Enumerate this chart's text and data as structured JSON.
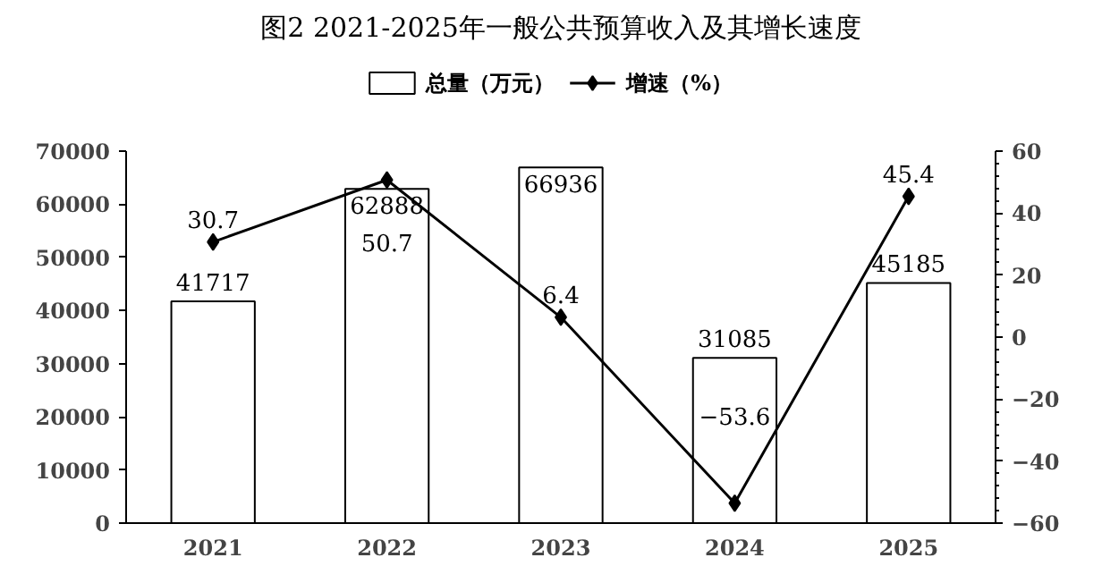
{
  "chart_data": {
    "type": "bar",
    "title": "图2 2021-2025年一般公共预算收入及其增长速度",
    "categories": [
      "2021",
      "2022",
      "2023",
      "2024",
      "2025"
    ],
    "series": [
      {
        "name": "总量（万元）",
        "color": "#ffffff",
        "values": [
          41717,
          62888,
          66936,
          31085,
          45185
        ]
      },
      {
        "name": "增速（%）",
        "type": "line",
        "axis": "y2",
        "color": "#000000",
        "marker": "diamond",
        "values": [
          30.7,
          50.7,
          6.4,
          -53.6,
          45.4
        ]
      }
    ],
    "ylim": [
      0,
      70000
    ],
    "yticks": [
      0,
      10000,
      20000,
      30000,
      40000,
      50000,
      60000,
      70000
    ],
    "y2lim": [
      -60,
      60
    ],
    "y2ticks": [
      {
        "value": -60,
        "label": "−60"
      },
      {
        "value": -40,
        "label": "−40"
      },
      {
        "value": -20,
        "label": "−20"
      },
      0,
      20,
      40,
      60
    ],
    "data_labels": true,
    "grid": false,
    "legend": "top"
  }
}
